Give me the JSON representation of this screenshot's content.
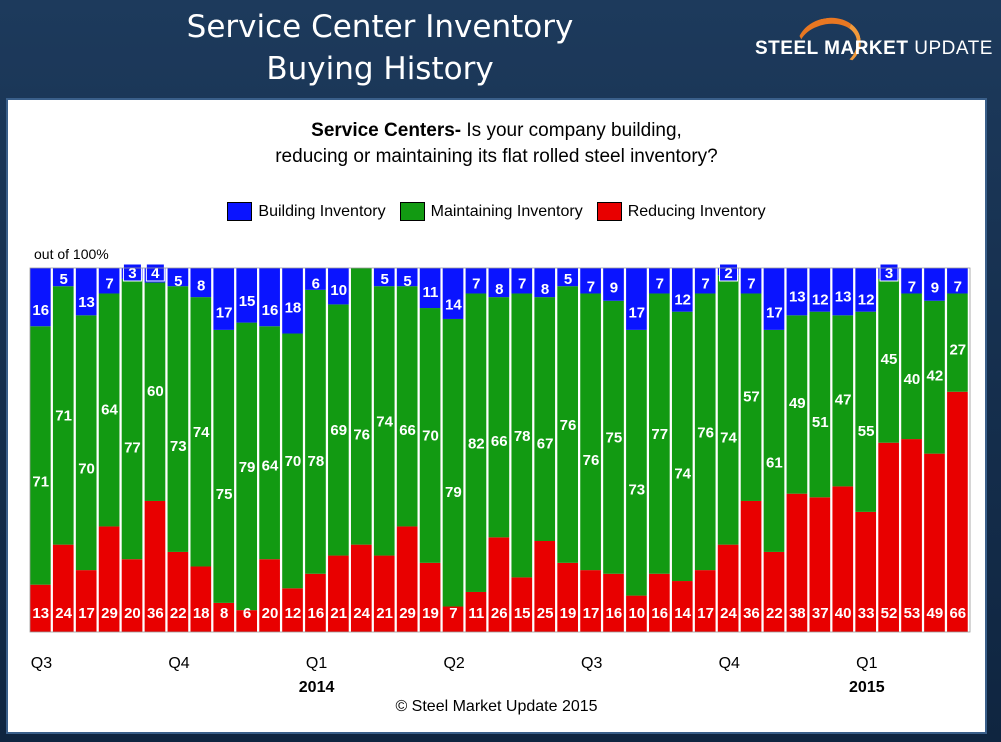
{
  "header": {
    "title_line1": "Service Center Inventory",
    "title_line2": "Buying History",
    "brand_bold": "STEEL MARKET",
    "brand_light": " UPDATE"
  },
  "question": {
    "lead": "Service Centers-",
    "line1_rest": " Is your company building,",
    "line2": "reducing or maintaining its flat rolled steel inventory?"
  },
  "scale_note": "out of 100%",
  "copyright": "© Steel Market Update 2015",
  "colors": {
    "building": "#0a14ff",
    "maintaining": "#129a12",
    "reducing": "#e80000"
  },
  "chart_data": {
    "type": "bar",
    "stacked": true,
    "ylim": [
      0,
      100
    ],
    "grid": false,
    "legend_placement": "top",
    "quarter_labels": [
      {
        "label": "Q3",
        "index": 0
      },
      {
        "label": "Q4",
        "index": 6
      },
      {
        "label": "Q1",
        "index": 12
      },
      {
        "label": "Q2",
        "index": 18
      },
      {
        "label": "Q3",
        "index": 24
      },
      {
        "label": "Q4",
        "index": 30
      },
      {
        "label": "Q1",
        "index": 36
      }
    ],
    "year_labels": [
      {
        "label": "2014",
        "index": 12
      },
      {
        "label": "2015",
        "index": 36
      }
    ],
    "series": [
      {
        "name": "Building Inventory",
        "color": "#0a14ff",
        "values": [
          16,
          5,
          13,
          7,
          3,
          4,
          5,
          8,
          17,
          15,
          16,
          18,
          6,
          10,
          0,
          5,
          5,
          11,
          14,
          7,
          8,
          7,
          8,
          5,
          7,
          9,
          17,
          7,
          12,
          7,
          2,
          7,
          17,
          13,
          12,
          13,
          12,
          3,
          7,
          9,
          7
        ]
      },
      {
        "name": "Maintaining Inventory",
        "color": "#129a12",
        "values": [
          71,
          71,
          70,
          64,
          77,
          60,
          73,
          74,
          75,
          79,
          64,
          70,
          78,
          69,
          76,
          74,
          66,
          70,
          79,
          82,
          66,
          78,
          67,
          76,
          76,
          75,
          73,
          77,
          74,
          76,
          74,
          57,
          61,
          49,
          51,
          47,
          55,
          45,
          40,
          42,
          27
        ]
      },
      {
        "name": "Reducing Inventory",
        "color": "#e80000",
        "values": [
          13,
          24,
          17,
          29,
          20,
          36,
          22,
          18,
          8,
          6,
          20,
          12,
          16,
          21,
          24,
          21,
          29,
          19,
          7,
          11,
          26,
          15,
          25,
          19,
          17,
          16,
          10,
          16,
          14,
          17,
          24,
          36,
          22,
          38,
          37,
          40,
          33,
          52,
          53,
          49,
          66
        ]
      }
    ]
  }
}
